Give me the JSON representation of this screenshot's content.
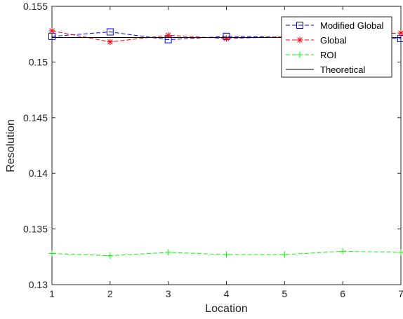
{
  "chart_data": {
    "type": "line",
    "xlabel": "Location",
    "ylabel": "Resolution",
    "x": [
      1,
      2,
      3,
      4,
      5,
      6,
      7
    ],
    "xlim": [
      1,
      7
    ],
    "ylim": [
      0.13,
      0.155
    ],
    "xticks": [
      "1",
      "2",
      "3",
      "4",
      "5",
      "6",
      "7"
    ],
    "yticks": [
      "0.13",
      "0.135",
      "0.14",
      "0.145",
      "0.15",
      "0.155"
    ],
    "grid": false,
    "legend_position": "top-right",
    "series": [
      {
        "name": "Modified Global",
        "color": "#0000ff",
        "marker": "square",
        "line": "dashed",
        "values": [
          0.1523,
          0.1527,
          0.152,
          0.1523,
          null,
          null,
          0.1521
        ]
      },
      {
        "name": "Global",
        "color": "#ff0000",
        "marker": "asterisk",
        "line": "dashed",
        "values": [
          0.1528,
          0.1518,
          0.1524,
          0.1521,
          null,
          null,
          0.1526
        ]
      },
      {
        "name": "ROI",
        "color": "#00ff00",
        "marker": "plus",
        "line": "dashed",
        "values": [
          0.1328,
          0.1326,
          0.1329,
          0.1327,
          0.1327,
          0.133,
          0.1329
        ]
      },
      {
        "name": "Theoretical",
        "color": "#000000",
        "marker": "none",
        "line": "solid",
        "values": [
          0.1522,
          0.1522,
          0.1522,
          0.1522,
          0.1522,
          0.1522,
          0.1522
        ]
      }
    ]
  }
}
